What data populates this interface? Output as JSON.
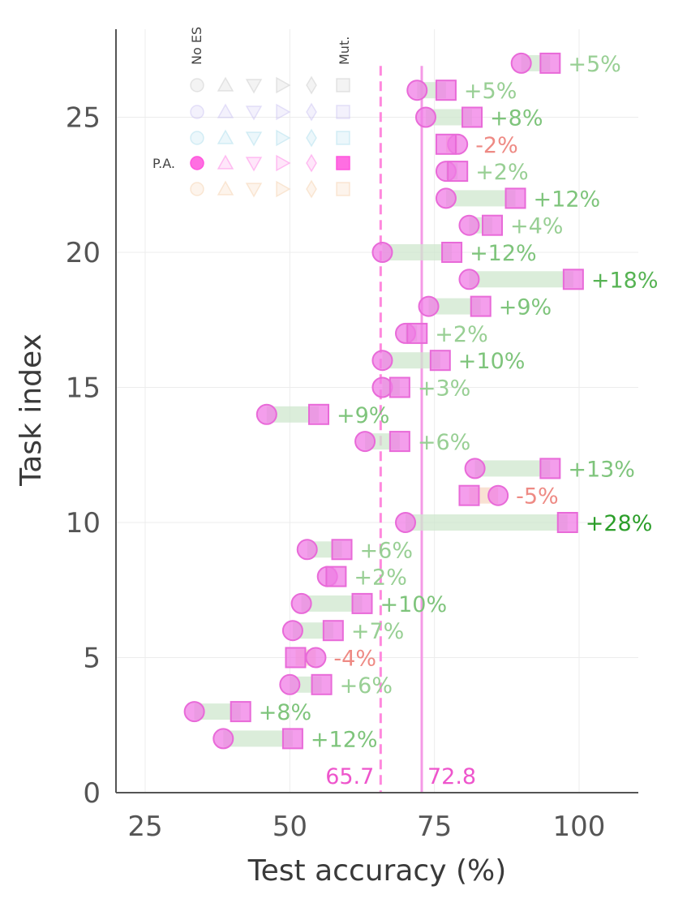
{
  "chart_data": {
    "type": "scatter",
    "xlabel": "Test accuracy (%)",
    "ylabel": "Task index",
    "xlim": [
      20,
      110
    ],
    "ylim": [
      0,
      28.2
    ],
    "xticks": [
      "25",
      "50",
      "75",
      "100"
    ],
    "yticks": [
      "0",
      "5",
      "10",
      "15",
      "20",
      "25"
    ],
    "grid": true,
    "vlines": [
      {
        "value": 65.7,
        "label": "65.7",
        "style": "dashed",
        "color": "#ff88dd"
      },
      {
        "value": 72.8,
        "label": "72.8",
        "style": "solid",
        "color": "#f49ae6"
      }
    ],
    "tasks": [
      {
        "task": 2,
        "circle": 38.5,
        "square": 50.5,
        "delta": "+12%"
      },
      {
        "task": 3,
        "circle": 33.5,
        "square": 41.5,
        "delta": "+8%"
      },
      {
        "task": 4,
        "circle": 50.0,
        "square": 55.5,
        "delta": "+6%"
      },
      {
        "task": 5,
        "circle": 54.5,
        "square": 51.0,
        "delta": "-4%"
      },
      {
        "task": 6,
        "circle": 50.5,
        "square": 57.5,
        "delta": "+7%"
      },
      {
        "task": 7,
        "circle": 52.0,
        "square": 62.5,
        "delta": "+10%"
      },
      {
        "task": 8,
        "circle": 56.5,
        "square": 58.0,
        "delta": "+2%"
      },
      {
        "task": 9,
        "circle": 53.0,
        "square": 59.0,
        "delta": "+6%"
      },
      {
        "task": 10,
        "circle": 70.0,
        "square": 98.0,
        "delta": "+28%"
      },
      {
        "task": 11,
        "circle": 86.0,
        "square": 81.0,
        "delta": "-5%"
      },
      {
        "task": 12,
        "circle": 82.0,
        "square": 95.0,
        "delta": "+13%"
      },
      {
        "task": 13,
        "circle": 63.0,
        "square": 69.0,
        "delta": "+6%"
      },
      {
        "task": 14,
        "circle": 46.0,
        "square": 55.0,
        "delta": "+9%"
      },
      {
        "task": 15,
        "circle": 66.0,
        "square": 69.0,
        "delta": "+3%"
      },
      {
        "task": 16,
        "circle": 66.0,
        "square": 76.0,
        "delta": "+10%"
      },
      {
        "task": 17,
        "circle": 70.0,
        "square": 72.0,
        "delta": "+2%"
      },
      {
        "task": 18,
        "circle": 74.0,
        "square": 83.0,
        "delta": "+9%"
      },
      {
        "task": 19,
        "circle": 81.0,
        "square": 99.0,
        "delta": "+18%"
      },
      {
        "task": 20,
        "circle": 66.0,
        "square": 78.0,
        "delta": "+12%"
      },
      {
        "task": 21,
        "circle": 81.0,
        "square": 85.0,
        "delta": "+4%"
      },
      {
        "task": 22,
        "circle": 77.0,
        "square": 89.0,
        "delta": "+12%"
      },
      {
        "task": 23,
        "circle": 77.0,
        "square": 79.0,
        "delta": "+2%"
      },
      {
        "task": 24,
        "circle": 79.0,
        "square": 77.0,
        "delta": "-2%"
      },
      {
        "task": 25,
        "circle": 73.5,
        "square": 81.5,
        "delta": "+8%"
      },
      {
        "task": 26,
        "circle": 72.0,
        "square": 77.0,
        "delta": "+5%"
      },
      {
        "task": 27,
        "circle": 90.0,
        "square": 95.0,
        "delta": "+5%"
      }
    ],
    "legend": {
      "placement": "top-left",
      "col_top_left": "No ES",
      "col_top_right": "Mut.",
      "row_label": "P.A.",
      "row_colors": [
        "#c8c8c8",
        "#c8bef2",
        "#a8dcec",
        "#ff55dd",
        "#f4cfa8"
      ],
      "highlight_row": 3
    }
  }
}
